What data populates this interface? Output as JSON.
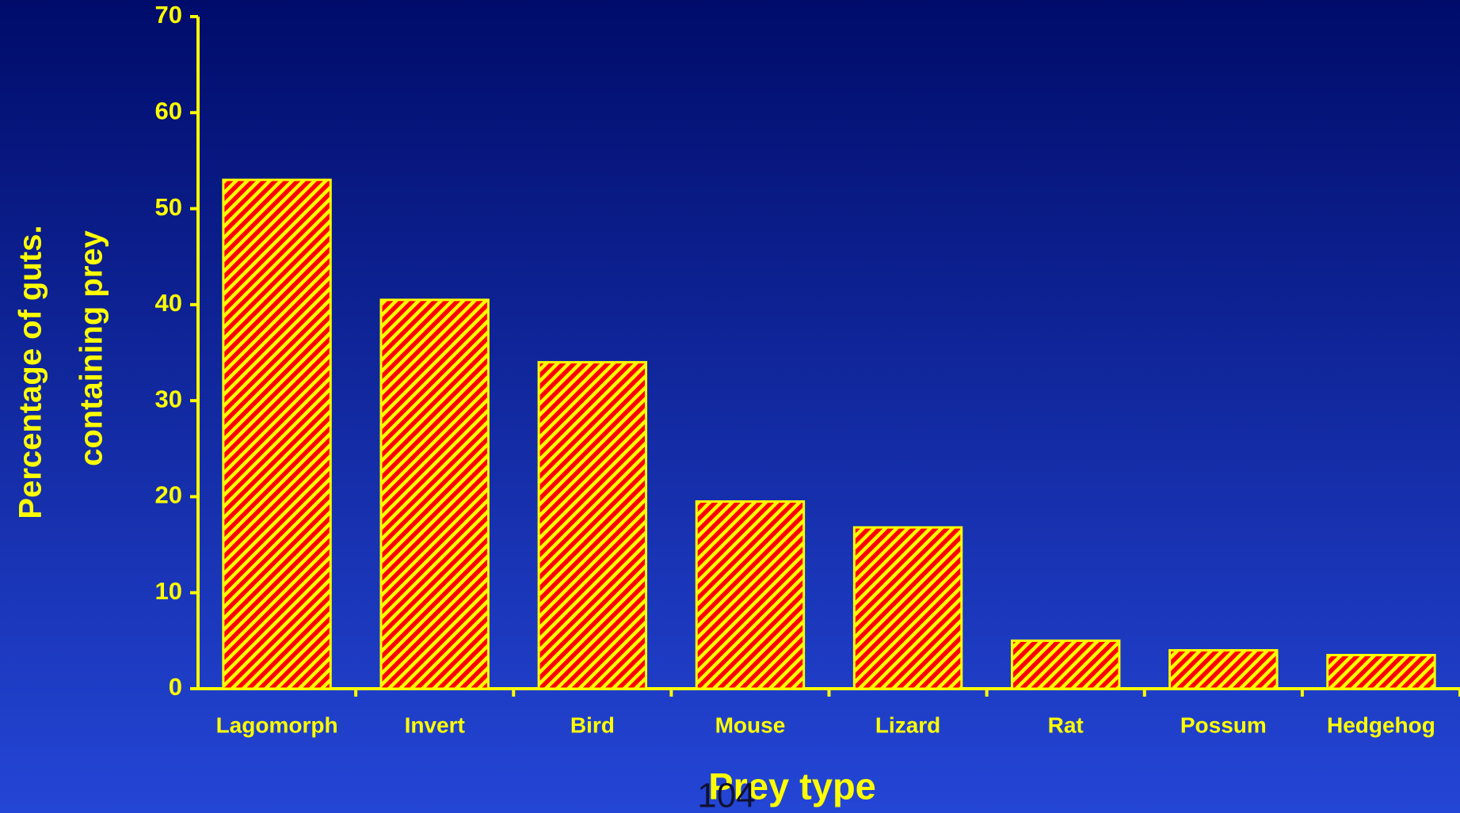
{
  "chart_data": {
    "type": "bar",
    "ylabel": [
      "Percentage of guts.",
      "containing prey"
    ],
    "xlabel": "Prey type",
    "categories": [
      "Lagomorph",
      "Invert",
      "Bird",
      "Mouse",
      "Lizard",
      "Rat",
      "Possum",
      "Hedgehog"
    ],
    "values": [
      53,
      40.5,
      34,
      19.5,
      16.8,
      5,
      4,
      3.5
    ],
    "color": "#ff0000",
    "hatch_color": "#ffff00",
    "axis_color": "#ffff00",
    "ylim": [
      0,
      70
    ],
    "yticks": [
      0,
      10,
      20,
      30,
      40,
      50,
      60,
      70
    ],
    "grid": false
  },
  "page_number": "104"
}
